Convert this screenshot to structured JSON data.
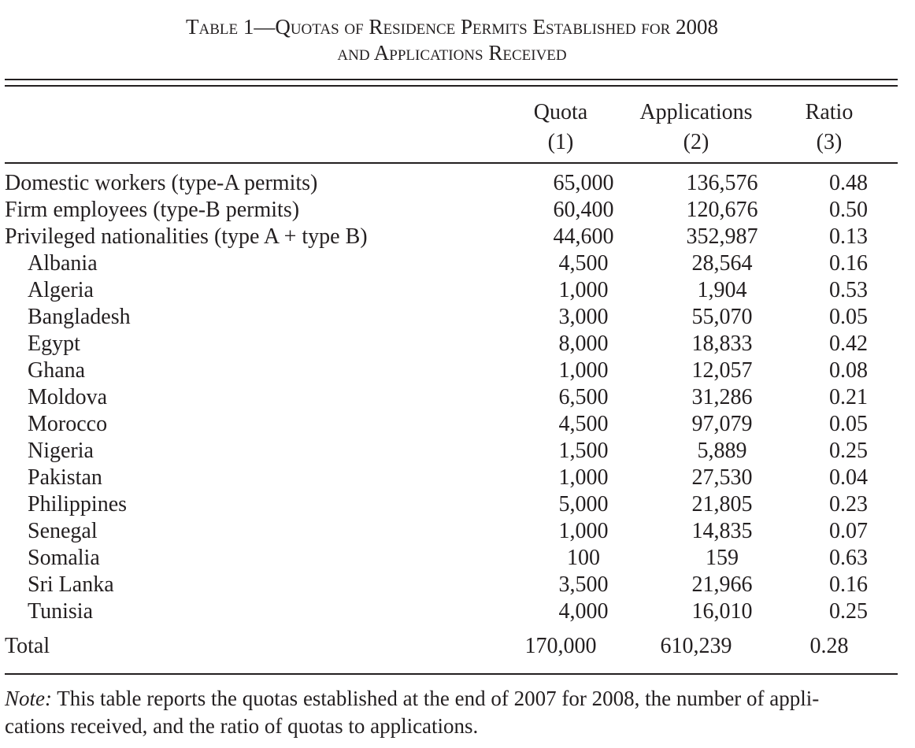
{
  "title": {
    "line1": "Table 1—Quotas of Residence Permits Established for 2008",
    "line2": "and Applications Received"
  },
  "columns": [
    {
      "name": "Quota",
      "number": "(1)"
    },
    {
      "name": "Applications",
      "number": "(2)"
    },
    {
      "name": "Ratio",
      "number": "(3)"
    }
  ],
  "rows": [
    {
      "label": "Domestic workers (type-A permits)",
      "quota": "65,000",
      "applications": "136,576",
      "ratio": "0.48",
      "indent": false
    },
    {
      "label": "Firm employees (type-B permits)",
      "quota": "60,400",
      "applications": "120,676",
      "ratio": "0.50",
      "indent": false
    },
    {
      "label": "Privileged nationalities (type A + type B)",
      "quota": "44,600",
      "applications": "352,987",
      "ratio": "0.13",
      "indent": false
    },
    {
      "label": "Albania",
      "quota": "4,500",
      "applications": "28,564",
      "ratio": "0.16",
      "indent": true
    },
    {
      "label": "Algeria",
      "quota": "1,000",
      "applications": "1,904",
      "ratio": "0.53",
      "indent": true
    },
    {
      "label": "Bangladesh",
      "quota": "3,000",
      "applications": "55,070",
      "ratio": "0.05",
      "indent": true
    },
    {
      "label": "Egypt",
      "quota": "8,000",
      "applications": "18,833",
      "ratio": "0.42",
      "indent": true
    },
    {
      "label": "Ghana",
      "quota": "1,000",
      "applications": "12,057",
      "ratio": "0.08",
      "indent": true
    },
    {
      "label": "Moldova",
      "quota": "6,500",
      "applications": "31,286",
      "ratio": "0.21",
      "indent": true
    },
    {
      "label": "Morocco",
      "quota": "4,500",
      "applications": "97,079",
      "ratio": "0.05",
      "indent": true
    },
    {
      "label": "Nigeria",
      "quota": "1,500",
      "applications": "5,889",
      "ratio": "0.25",
      "indent": true
    },
    {
      "label": "Pakistan",
      "quota": "1,000",
      "applications": "27,530",
      "ratio": "0.04",
      "indent": true
    },
    {
      "label": "Philippines",
      "quota": "5,000",
      "applications": "21,805",
      "ratio": "0.23",
      "indent": true
    },
    {
      "label": "Senegal",
      "quota": "1,000",
      "applications": "14,835",
      "ratio": "0.07",
      "indent": true
    },
    {
      "label": "Somalia",
      "quota": "100",
      "applications": "159",
      "ratio": "0.63",
      "indent": true
    },
    {
      "label": "Sri Lanka",
      "quota": "3,500",
      "applications": "21,966",
      "ratio": "0.16",
      "indent": true
    },
    {
      "label": "Tunisia",
      "quota": "4,000",
      "applications": "16,010",
      "ratio": "0.25",
      "indent": true
    }
  ],
  "total": {
    "label": "Total",
    "quota": "170,000",
    "applications": "610,239",
    "ratio": "0.28"
  },
  "note": {
    "prefix": "Note:",
    "text": " This table reports the quotas established at the end of 2007 for 2008, the number of appli-",
    "text2": "cations received, and the ratio of quotas to applications."
  }
}
